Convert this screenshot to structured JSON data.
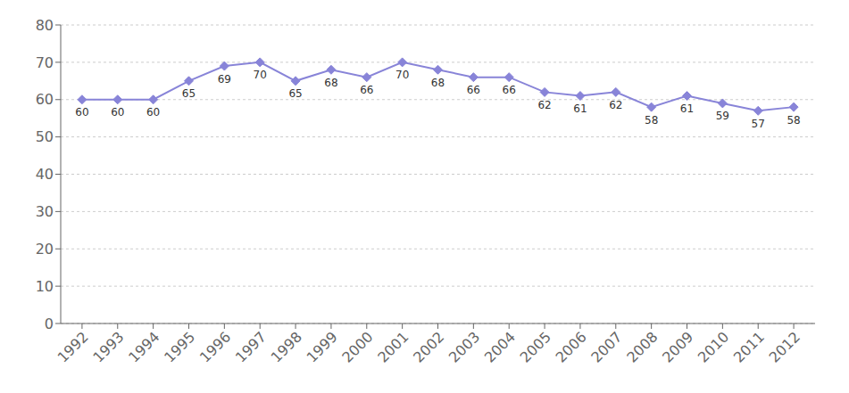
{
  "chart_data": {
    "type": "line",
    "x": [
      1992,
      1993,
      1994,
      1995,
      1996,
      1997,
      1998,
      1999,
      2000,
      2001,
      2002,
      2003,
      2004,
      2005,
      2006,
      2007,
      2008,
      2009,
      2010,
      2011,
      2012
    ],
    "values": [
      60,
      60,
      60,
      65,
      69,
      70,
      65,
      68,
      66,
      70,
      68,
      66,
      66,
      62,
      61,
      62,
      58,
      61,
      59,
      57,
      58
    ],
    "xlim": [
      1991.4,
      2012.6
    ],
    "xticks": [
      1992,
      1993,
      1994,
      1995,
      1996,
      1997,
      1998,
      1999,
      2000,
      2001,
      2002,
      2003,
      2004,
      2005,
      2006,
      2007,
      2008,
      2009,
      2010,
      2011,
      2012
    ],
    "ylim": [
      0,
      80
    ],
    "yticks": [
      0,
      10,
      20,
      30,
      40,
      50,
      60,
      70,
      80
    ],
    "grid": true,
    "data_labels": true,
    "marker": "diamond"
  }
}
